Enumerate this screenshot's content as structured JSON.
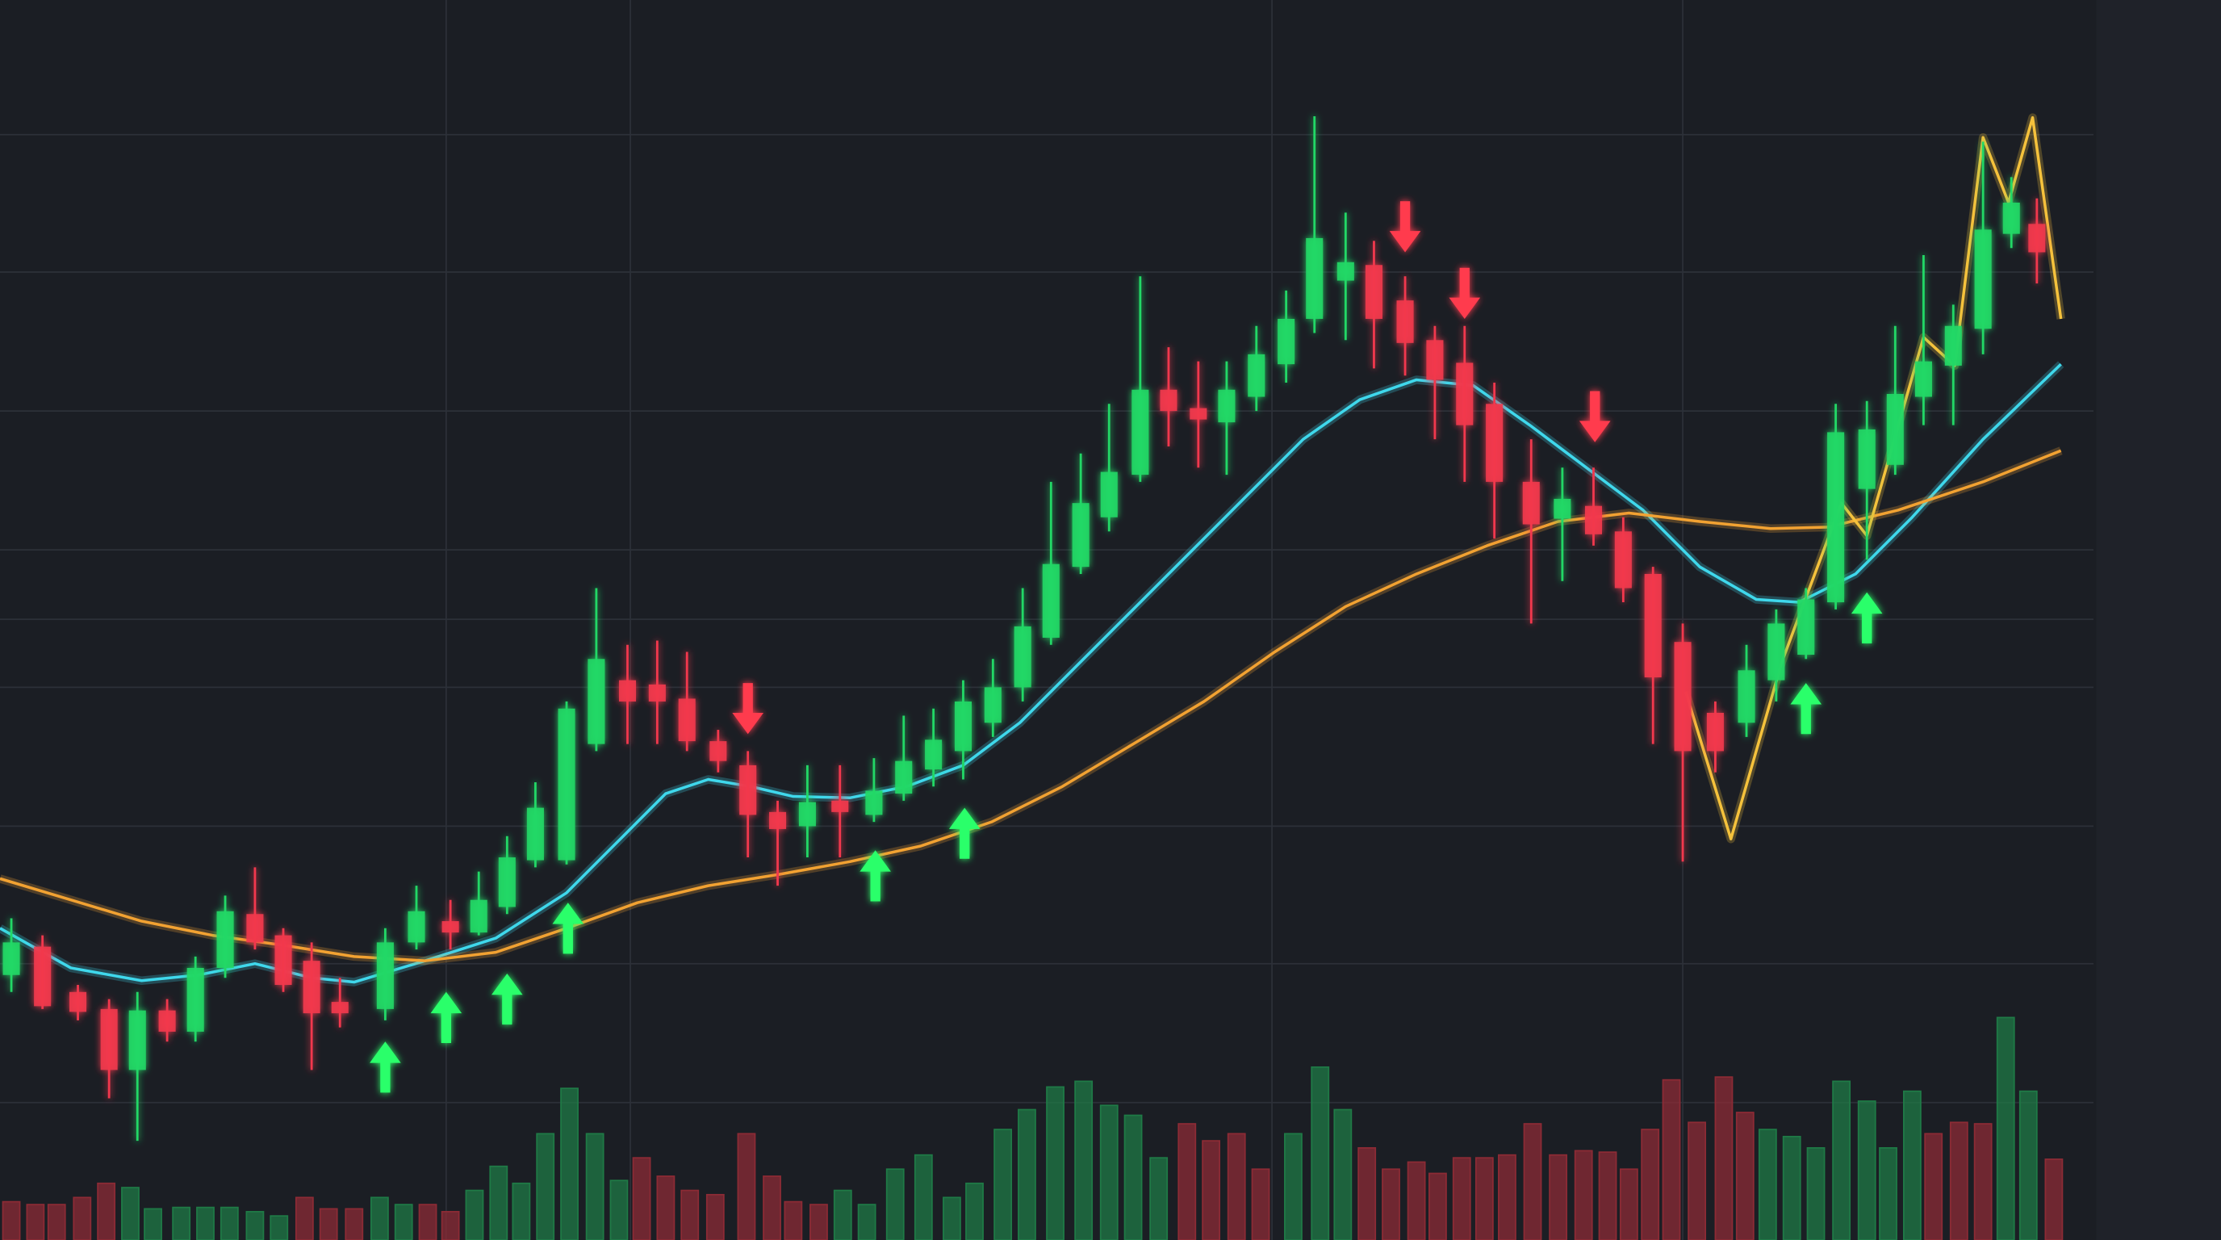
{
  "chart_data": {
    "type": "candlestick",
    "xlim": [
      0,
      1568
    ],
    "ylim": [
      0,
      875
    ],
    "xticks": [
      315,
      445,
      898,
      1188
    ],
    "yticks": [
      97,
      195,
      292,
      390,
      438,
      487,
      585,
      683,
      780
    ],
    "grid": true,
    "up_color": "#22d866",
    "down_color": "#f2394d",
    "x": [
      8,
      30,
      55,
      77,
      97,
      118,
      138,
      159,
      180,
      200,
      220,
      240,
      272,
      294,
      318,
      338,
      358,
      378,
      400,
      421,
      443,
      464,
      485,
      507,
      528,
      549,
      570,
      593,
      617,
      638,
      659,
      680,
      701,
      722,
      742,
      763,
      783,
      805,
      825,
      846,
      866,
      887,
      908,
      928,
      950,
      970,
      992,
      1013,
      1034,
      1055,
      1081,
      1103,
      1125,
      1146,
      1167,
      1188,
      1211,
      1233,
      1254,
      1275,
      1296,
      1318,
      1338,
      1358,
      1379,
      1400,
      1420,
      1438
    ],
    "open": [
      187,
      207,
      175,
      163,
      120,
      162,
      147,
      192,
      230,
      215,
      197,
      168,
      163,
      210,
      225,
      217,
      235,
      268,
      268,
      350,
      395,
      392,
      382,
      352,
      335,
      302,
      292,
      310,
      300,
      315,
      332,
      345,
      365,
      390,
      425,
      475,
      510,
      540,
      600,
      587,
      577,
      595,
      618,
      650,
      677,
      688,
      663,
      635,
      619,
      590,
      535,
      509,
      518,
      500,
      470,
      422,
      372,
      365,
      395,
      413,
      450,
      530,
      547,
      595,
      617,
      643,
      710,
      717
    ],
    "high": [
      227,
      215,
      180,
      170,
      175,
      170,
      200,
      243,
      263,
      220,
      210,
      185,
      220,
      250,
      240,
      260,
      285,
      323,
      380,
      460,
      420,
      423,
      415,
      360,
      345,
      310,
      335,
      335,
      340,
      370,
      375,
      395,
      410,
      460,
      535,
      555,
      590,
      680,
      630,
      620,
      620,
      645,
      670,
      793,
      725,
      705,
      680,
      645,
      645,
      605,
      565,
      545,
      545,
      510,
      475,
      435,
      380,
      420,
      445,
      460,
      590,
      592,
      645,
      695,
      660,
      775,
      750,
      735
    ],
    "low": [
      175,
      163,
      155,
      100,
      70,
      140,
      140,
      185,
      205,
      175,
      120,
      150,
      155,
      205,
      205,
      215,
      230,
      263,
      265,
      345,
      350,
      350,
      345,
      330,
      270,
      250,
      270,
      270,
      295,
      310,
      320,
      325,
      355,
      380,
      420,
      470,
      500,
      535,
      560,
      545,
      540,
      585,
      605,
      640,
      635,
      615,
      610,
      565,
      535,
      495,
      435,
      465,
      490,
      450,
      350,
      267,
      330,
      355,
      380,
      410,
      445,
      480,
      540,
      575,
      575,
      625,
      700,
      675
    ],
    "close": [
      210,
      165,
      161,
      120,
      162,
      147,
      192,
      232,
      210,
      180,
      160,
      160,
      210,
      232,
      217,
      240,
      270,
      305,
      375,
      410,
      380,
      380,
      352,
      338,
      300,
      290,
      309,
      302,
      317,
      338,
      353,
      380,
      390,
      433,
      477,
      520,
      542,
      600,
      585,
      579,
      600,
      625,
      650,
      707,
      690,
      650,
      633,
      607,
      575,
      535,
      505,
      523,
      498,
      460,
      397,
      345,
      345,
      402,
      435,
      452,
      570,
      572,
      597,
      620,
      645,
      713,
      732,
      697
    ],
    "lines": [
      {
        "color": "#3fd8ec",
        "x": [
          0,
          50,
          100,
          140,
          180,
          220,
          250,
          300,
          350,
          400,
          440,
          470,
          500,
          530,
          560,
          600,
          640,
          680,
          720,
          760,
          800,
          840,
          880,
          920,
          960,
          1000,
          1040,
          1080,
          1120,
          1160,
          1200,
          1240,
          1270,
          1310,
          1350,
          1400,
          1455
        ],
        "values": [
          220,
          192,
          183,
          187,
          195,
          185,
          182,
          197,
          213,
          245,
          285,
          315,
          325,
          320,
          313,
          312,
          320,
          335,
          365,
          405,
          445,
          485,
          525,
          565,
          593,
          607,
          603,
          575,
          545,
          515,
          475,
          452,
          450,
          470,
          510,
          565,
          618
        ]
      },
      {
        "color": "#f2a232",
        "x": [
          0,
          50,
          100,
          150,
          200,
          250,
          300,
          350,
          400,
          450,
          500,
          550,
          600,
          650,
          700,
          750,
          800,
          850,
          900,
          950,
          1000,
          1050,
          1100,
          1150,
          1200,
          1250,
          1290,
          1340,
          1400,
          1455
        ],
        "values": [
          255,
          240,
          225,
          215,
          208,
          200,
          197,
          203,
          220,
          238,
          250,
          258,
          267,
          278,
          295,
          320,
          350,
          380,
          415,
          447,
          470,
          490,
          507,
          513,
          507,
          502,
          503,
          515,
          535,
          557
        ]
      },
      {
        "color": "#f5c23c",
        "x": [
          1190,
          1222,
          1258,
          1300,
          1318,
          1358,
          1380,
          1400,
          1418,
          1435,
          1455
        ],
        "values": [
          387,
          283,
          408,
          520,
          497,
          637,
          617,
          778,
          732,
          792,
          650
        ]
      }
    ],
    "buy_signals": {
      "color": "#2bff6a",
      "x": [
        272,
        315,
        358,
        401,
        618,
        681,
        1275,
        1318
      ],
      "y": [
        140,
        175,
        188,
        238,
        275,
        305,
        393,
        457
      ]
    },
    "sell_signals": {
      "color": "#ff3a4e",
      "x": [
        528,
        992,
        1034,
        1126
      ],
      "y": [
        357,
        697,
        650,
        563
      ]
    },
    "volume": {
      "ylim": [
        0,
        875
      ],
      "x": [
        8,
        25,
        40,
        58,
        75,
        92,
        108,
        128,
        145,
        162,
        180,
        197,
        215,
        232,
        250,
        268,
        285,
        302,
        318,
        335,
        352,
        368,
        385,
        402,
        420,
        437,
        453,
        470,
        487,
        505,
        527,
        545,
        560,
        578,
        595,
        612,
        632,
        652,
        672,
        688,
        708,
        725,
        745,
        765,
        783,
        800,
        818,
        838,
        855,
        873,
        890,
        913,
        932,
        948,
        965,
        982,
        1000,
        1015,
        1032,
        1048,
        1064,
        1082,
        1100,
        1118,
        1135,
        1150,
        1165,
        1180,
        1198,
        1217,
        1232,
        1248,
        1265,
        1282,
        1300,
        1318,
        1333,
        1350,
        1365,
        1383,
        1400,
        1416,
        1432,
        1450
      ],
      "values": [
        27,
        25,
        25,
        30,
        40,
        37,
        22,
        23,
        23,
        23,
        20,
        17,
        30,
        22,
        22,
        30,
        25,
        25,
        20,
        35,
        52,
        40,
        75,
        107,
        75,
        42,
        58,
        45,
        35,
        32,
        75,
        45,
        27,
        25,
        35,
        25,
        50,
        60,
        30,
        40,
        78,
        92,
        108,
        112,
        95,
        88,
        58,
        82,
        70,
        75,
        50,
        75,
        122,
        92,
        65,
        50,
        55,
        47,
        58,
        58,
        60,
        82,
        60,
        63,
        62,
        50,
        78,
        113,
        83,
        115,
        90,
        78,
        73,
        65,
        112,
        98,
        65,
        105,
        75,
        83,
        82,
        157,
        105,
        57
      ],
      "colors": [
        "#8c2b35",
        "#8c2b35",
        "#8c2b35",
        "#8c2b35",
        "#8c2b35",
        "#1f7a46",
        "#1f7a46",
        "#1f7a46",
        "#1f7a46",
        "#1f7a46",
        "#1f7a46",
        "#1f7a46",
        "#8c2b35",
        "#8c2b35",
        "#8c2b35",
        "#1f7a46",
        "#1f7a46",
        "#8c2b35",
        "#8c2b35",
        "#1f7a46",
        "#1f7a46",
        "#1f7a46",
        "#1f7a46",
        "#1f7a46",
        "#1f7a46",
        "#1f7a46",
        "#8c2b35",
        "#8c2b35",
        "#8c2b35",
        "#8c2b35",
        "#8c2b35",
        "#8c2b35",
        "#8c2b35",
        "#8c2b35",
        "#1f7a46",
        "#1f7a46",
        "#1f7a46",
        "#1f7a46",
        "#1f7a46",
        "#1f7a46",
        "#1f7a46",
        "#1f7a46",
        "#1f7a46",
        "#1f7a46",
        "#1f7a46",
        "#1f7a46",
        "#1f7a46",
        "#8c2b35",
        "#8c2b35",
        "#8c2b35",
        "#8c2b35",
        "#1f7a46",
        "#1f7a46",
        "#1f7a46",
        "#8c2b35",
        "#8c2b35",
        "#8c2b35",
        "#8c2b35",
        "#8c2b35",
        "#8c2b35",
        "#8c2b35",
        "#8c2b35",
        "#8c2b35",
        "#8c2b35",
        "#8c2b35",
        "#8c2b35",
        "#8c2b35",
        "#8c2b35",
        "#8c2b35",
        "#8c2b35",
        "#8c2b35",
        "#1f7a46",
        "#1f7a46",
        "#1f7a46",
        "#1f7a46",
        "#1f7a46",
        "#1f7a46",
        "#1f7a46",
        "#8c2b35",
        "#8c2b35",
        "#8c2b35",
        "#1f7a46",
        "#1f7a46",
        "#8c2b35"
      ]
    }
  }
}
